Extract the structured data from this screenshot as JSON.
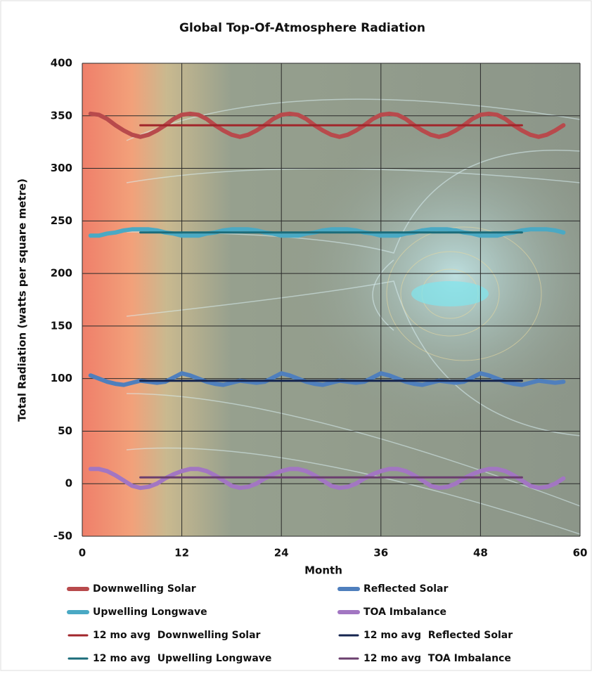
{
  "chart_data": {
    "type": "line",
    "title": "Global Top-Of-Atmosphere Radiation",
    "x_label": "Month",
    "y_label": "Total Radiation (watts per square metre)",
    "x": [
      1,
      2,
      3,
      4,
      5,
      6,
      7,
      8,
      9,
      10,
      11,
      12,
      13,
      14,
      15,
      16,
      17,
      18,
      19,
      20,
      21,
      22,
      23,
      24,
      25,
      26,
      27,
      28,
      29,
      30,
      31,
      32,
      33,
      34,
      35,
      36,
      37,
      38,
      39,
      40,
      41,
      42,
      43,
      44,
      45,
      46,
      47,
      48,
      49,
      50,
      51,
      52,
      53,
      54,
      55,
      56,
      57,
      58
    ],
    "xlim": [
      0,
      60
    ],
    "xticks": [
      0,
      12,
      24,
      36,
      48,
      60
    ],
    "ylim": [
      -50,
      400
    ],
    "yticks": [
      -50,
      0,
      50,
      100,
      150,
      200,
      250,
      300,
      350,
      400
    ],
    "grid": true,
    "series": [
      {
        "name": "Downwelling Solar",
        "color": "#b84a4c",
        "linewidth": 6,
        "values": [
          352,
          351,
          347,
          341,
          336,
          332,
          330,
          332,
          336,
          341,
          347,
          351,
          352,
          351,
          347,
          341,
          336,
          332,
          330,
          332,
          336,
          341,
          347,
          351,
          352,
          351,
          347,
          341,
          336,
          332,
          330,
          332,
          336,
          341,
          347,
          351,
          352,
          351,
          347,
          341,
          336,
          332,
          330,
          332,
          336,
          341,
          347,
          351,
          352,
          351,
          347,
          341,
          336,
          332,
          330,
          332,
          336,
          341
        ]
      },
      {
        "name": "Upwelling Longwave",
        "color": "#4aa9c4",
        "linewidth": 6,
        "values": [
          236,
          236,
          238,
          239,
          241,
          242,
          242,
          242,
          241,
          239,
          238,
          236,
          236,
          236,
          238,
          239,
          241,
          242,
          242,
          242,
          241,
          239,
          238,
          236,
          236,
          236,
          238,
          239,
          241,
          242,
          242,
          242,
          241,
          239,
          238,
          236,
          236,
          236,
          238,
          239,
          241,
          242,
          242,
          242,
          241,
          239,
          238,
          236,
          236,
          236,
          238,
          239,
          241,
          242,
          242,
          242,
          241,
          239
        ]
      },
      {
        "name": "Reflected Solar",
        "color": "#4f7fbd",
        "linewidth": 6,
        "values": [
          103,
          100,
          97,
          95,
          94,
          96,
          98,
          97,
          96,
          97,
          101,
          105,
          103,
          100,
          97,
          95,
          94,
          96,
          98,
          97,
          96,
          97,
          101,
          105,
          103,
          100,
          97,
          95,
          94,
          96,
          98,
          97,
          96,
          97,
          101,
          105,
          103,
          100,
          97,
          95,
          94,
          96,
          98,
          97,
          96,
          97,
          101,
          105,
          103,
          100,
          97,
          95,
          94,
          96,
          98,
          97,
          96,
          97
        ]
      },
      {
        "name": "TOA Imbalance",
        "color": "#a276c2",
        "linewidth": 6,
        "values": [
          14,
          14,
          12,
          8,
          3,
          -2,
          -4,
          -3,
          0,
          5,
          9,
          12,
          14,
          14,
          12,
          8,
          3,
          -2,
          -4,
          -3,
          0,
          5,
          9,
          12,
          14,
          14,
          12,
          8,
          3,
          -2,
          -4,
          -3,
          0,
          5,
          9,
          12,
          14,
          14,
          12,
          8,
          3,
          -2,
          -4,
          -3,
          0,
          5,
          9,
          12,
          14,
          14,
          12,
          8,
          3,
          -2,
          -4,
          -3,
          0,
          5
        ]
      },
      {
        "name": "12 mo avg  Downwelling Solar",
        "color": "#a1262b",
        "linewidth": 3,
        "x": [
          7,
          53
        ],
        "values": [
          341,
          341
        ]
      },
      {
        "name": "12 mo avg  Upwelling Longwave",
        "color": "#1b6c7a",
        "linewidth": 3,
        "x": [
          7,
          53
        ],
        "values": [
          239,
          239
        ]
      },
      {
        "name": "12 mo avg  Reflected Solar",
        "color": "#15254f",
        "linewidth": 3,
        "x": [
          7,
          53
        ],
        "values": [
          98,
          98
        ]
      },
      {
        "name": "12 mo avg  TOA Imbalance",
        "color": "#6b3f6e",
        "linewidth": 3,
        "x": [
          7,
          53
        ],
        "values": [
          6,
          6
        ]
      }
    ]
  }
}
